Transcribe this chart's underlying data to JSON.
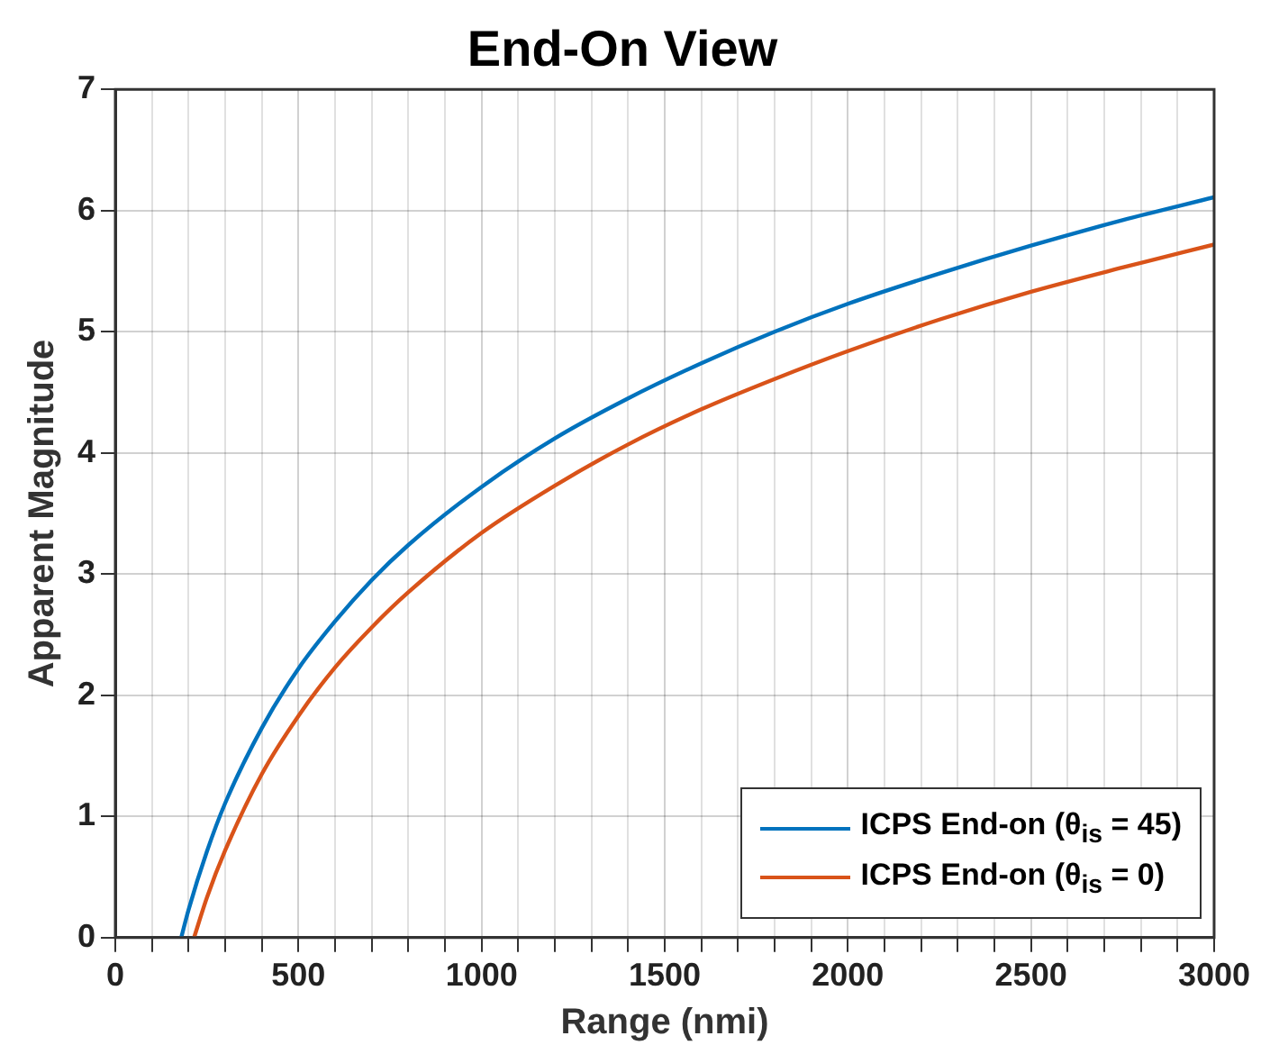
{
  "chart_data": {
    "type": "line",
    "title": "End-On View",
    "xlabel": "Range (nmi)",
    "ylabel": "Apparent Magnitude",
    "xlim": [
      0,
      3000
    ],
    "xticks": [
      0,
      {
        "value": 100,
        "label": null
      },
      {
        "value": 200,
        "label": null
      },
      {
        "value": 300,
        "label": null
      },
      {
        "value": 400,
        "label": null
      },
      500,
      {
        "value": 600,
        "label": null
      },
      {
        "value": 700,
        "label": null
      },
      {
        "value": 800,
        "label": null
      },
      {
        "value": 900,
        "label": null
      },
      1000,
      {
        "value": 1100,
        "label": null
      },
      {
        "value": 1200,
        "label": null
      },
      {
        "value": 1300,
        "label": null
      },
      {
        "value": 1400,
        "label": null
      },
      1500,
      {
        "value": 1600,
        "label": null
      },
      {
        "value": 1700,
        "label": null
      },
      {
        "value": 1800,
        "label": null
      },
      {
        "value": 1900,
        "label": null
      },
      2000,
      {
        "value": 2100,
        "label": null
      },
      {
        "value": 2200,
        "label": null
      },
      {
        "value": 2300,
        "label": null
      },
      {
        "value": 2400,
        "label": null
      },
      2500,
      {
        "value": 2600,
        "label": null
      },
      {
        "value": 2700,
        "label": null
      },
      {
        "value": 2800,
        "label": null
      },
      {
        "value": 2900,
        "label": null
      },
      3000
    ],
    "ylim": [
      0,
      7
    ],
    "yticks": [
      0,
      1,
      2,
      3,
      4,
      5,
      6,
      7
    ],
    "grid": true,
    "legend": "bottom right",
    "marker": "none",
    "line_style": "solid",
    "series": [
      {
        "name": "ICPS End-on (θ$_{is}$ = 45)",
        "color": "#0072bd",
        "x": [
          180,
          200,
          250,
          300,
          400,
          500,
          600,
          700,
          800,
          1000,
          1200,
          1400,
          1600,
          1800,
          2000,
          2250,
          2500,
          2750,
          3000
        ],
        "values": [
          0,
          0.23,
          0.71,
          1.11,
          1.73,
          2.22,
          2.61,
          2.95,
          3.24,
          3.72,
          4.12,
          4.45,
          4.74,
          5.0,
          5.23,
          5.48,
          5.71,
          5.92,
          6.11
        ]
      },
      {
        "name": "ICPS End-on (θ$_{is}$ = 0)",
        "color": "#d95319",
        "x": [
          215,
          250,
          300,
          400,
          500,
          600,
          700,
          800,
          1000,
          1200,
          1400,
          1600,
          1800,
          2000,
          2250,
          2500,
          2750,
          3000
        ],
        "values": [
          0,
          0.33,
          0.72,
          1.35,
          1.83,
          2.23,
          2.56,
          2.85,
          3.34,
          3.73,
          4.07,
          4.36,
          4.61,
          4.84,
          5.1,
          5.33,
          5.53,
          5.72
        ]
      }
    ]
  }
}
